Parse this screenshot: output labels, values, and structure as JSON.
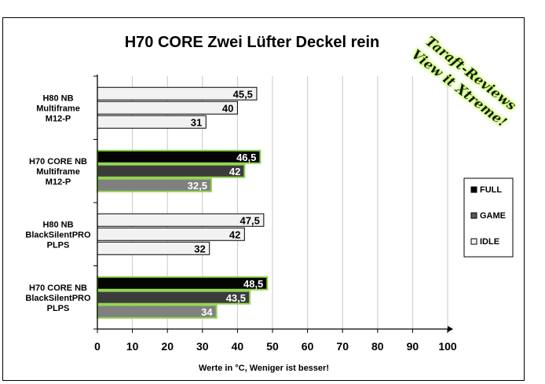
{
  "chart_data": {
    "type": "bar",
    "orientation": "horizontal",
    "title": "H70 CORE Zwei Lüfter Deckel rein",
    "xlabel": "Werte in °C, Weniger ist besser!",
    "xlim": [
      0,
      100
    ],
    "x_ticks": [
      "0",
      "10",
      "20",
      "30",
      "40",
      "50",
      "60",
      "70",
      "80",
      "90",
      "100"
    ],
    "grid": "vertical",
    "legend_position": "right",
    "categories": [
      {
        "lines": [
          "H80 NB",
          "Multiframe",
          "M12-P"
        ]
      },
      {
        "lines": [
          "H70 CORE  NB",
          "Multiframe",
          "M12-P"
        ]
      },
      {
        "lines": [
          "H80 NB",
          "BlackSilentPRO",
          "PLPS"
        ]
      },
      {
        "lines": [
          "H70 CORE  NB",
          "BlackSilentPRO",
          "PLPS"
        ]
      }
    ],
    "series": [
      {
        "name": "FULL",
        "values": [
          45.5,
          46.5,
          47.5,
          48.5
        ],
        "labels": [
          "45,5",
          "46,5",
          "47,5",
          "48,5"
        ]
      },
      {
        "name": "GAME",
        "values": [
          40,
          42,
          42,
          43.5
        ],
        "labels": [
          "40",
          "42",
          "42",
          "43,5"
        ]
      },
      {
        "name": "IDLE",
        "values": [
          31,
          32.5,
          32,
          34
        ],
        "labels": [
          "31",
          "32,5",
          "32",
          "34"
        ]
      }
    ],
    "styles": {
      "highlight_rows": [
        1,
        3
      ],
      "highlight_fills": {
        "FULL": "#050505",
        "GAME": "#3c3c3c",
        "IDLE": "#808080"
      },
      "normal_fill": "#f2f2f2",
      "highlight_border": "#8fd14f",
      "normal_border": "#000000",
      "legend_colors": {
        "FULL": "#050505",
        "GAME": "#595959",
        "IDLE": "#f2f2f2"
      }
    },
    "watermark": [
      "Taraft-Reviews",
      "View it Xtreme!"
    ]
  }
}
